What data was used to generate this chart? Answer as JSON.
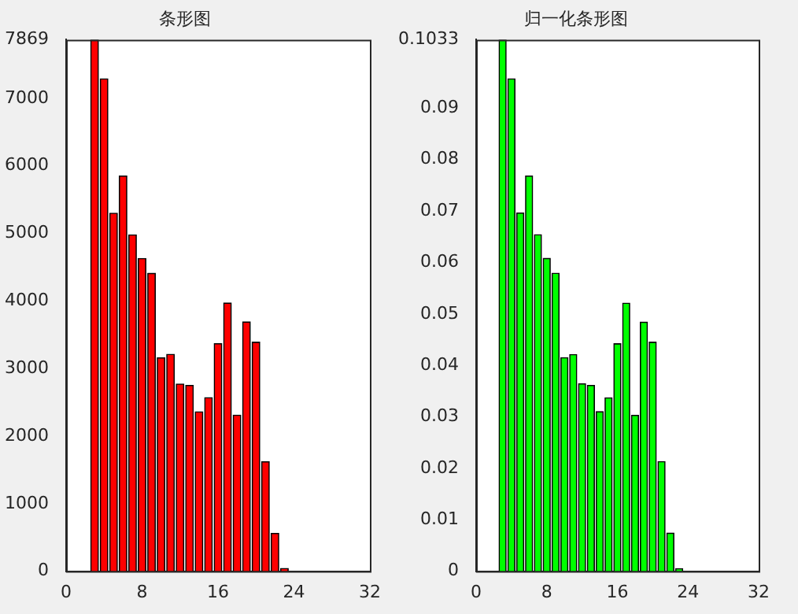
{
  "chart_data": [
    {
      "type": "bar",
      "title": "条形图",
      "x": [
        3,
        4,
        5,
        6,
        7,
        8,
        9,
        10,
        11,
        12,
        13,
        14,
        15,
        16,
        17,
        18,
        19,
        20,
        21,
        22,
        23
      ],
      "values": [
        7869,
        7290,
        5300,
        5850,
        4980,
        4630,
        4410,
        3160,
        3210,
        2770,
        2750,
        2360,
        2570,
        3370,
        3970,
        2310,
        3690,
        3390,
        1620,
        560,
        40
      ],
      "color": "#ff0000",
      "xlim": [
        0,
        32
      ],
      "xticks": [
        0,
        8,
        16,
        24,
        32
      ],
      "ylim": [
        0,
        7869
      ],
      "yticks": [
        0,
        1000,
        2000,
        3000,
        4000,
        5000,
        6000,
        7000,
        7869
      ],
      "grid": false
    },
    {
      "type": "bar",
      "title": "归一化条形图",
      "x": [
        3,
        4,
        5,
        6,
        7,
        8,
        9,
        10,
        11,
        12,
        13,
        14,
        15,
        16,
        17,
        18,
        19,
        20,
        21,
        22,
        23
      ],
      "values": [
        0.1033,
        0.0957,
        0.0696,
        0.0768,
        0.0654,
        0.0608,
        0.0579,
        0.0415,
        0.0421,
        0.0364,
        0.0361,
        0.031,
        0.0337,
        0.0442,
        0.0521,
        0.0303,
        0.0484,
        0.0445,
        0.0213,
        0.0074,
        0.0005
      ],
      "color": "#00ff00",
      "xlim": [
        0,
        32
      ],
      "xticks": [
        0,
        8,
        16,
        24,
        32
      ],
      "ylim": [
        0,
        0.1033
      ],
      "yticks": [
        0,
        0.01,
        0.02,
        0.03,
        0.04,
        0.05,
        0.06,
        0.07,
        0.08,
        0.09,
        0.1033
      ],
      "grid": false
    }
  ]
}
